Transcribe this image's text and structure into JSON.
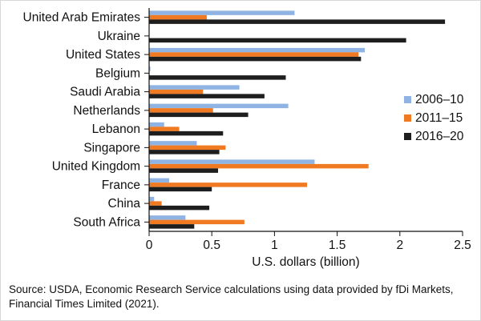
{
  "chart_data": {
    "type": "bar",
    "orientation": "horizontal",
    "title": "",
    "xlabel": "U.S. dollars (billion)",
    "ylabel": "",
    "xlim": [
      0,
      2.5
    ],
    "xticks": [
      0,
      0.5,
      1,
      1.5,
      2,
      2.5
    ],
    "xtick_labels": [
      "0",
      "0.5",
      "1",
      "1.5",
      "2",
      "2.5"
    ],
    "grid": false,
    "legend_position": "right",
    "categories": [
      "United Arab Emirates",
      "Ukraine",
      "United States",
      "Belgium",
      "Saudi Arabia",
      "Netherlands",
      "Lebanon",
      "Singapore",
      "United Kingdom",
      "France",
      "China",
      "South Africa"
    ],
    "series": [
      {
        "name": "2006–10",
        "color": "#8fb4e3",
        "values": [
          1.16,
          0.0,
          1.72,
          0.01,
          0.72,
          1.11,
          0.12,
          0.38,
          1.32,
          0.16,
          0.04,
          0.29
        ]
      },
      {
        "name": "2011–15",
        "color": "#f07a22",
        "values": [
          0.46,
          0.0,
          1.67,
          0.0,
          0.43,
          0.51,
          0.24,
          0.61,
          1.75,
          1.26,
          0.1,
          0.76
        ]
      },
      {
        "name": "2016–20",
        "color": "#1e1e1e",
        "values": [
          2.36,
          2.05,
          1.69,
          1.09,
          0.92,
          0.79,
          0.59,
          0.56,
          0.55,
          0.5,
          0.48,
          0.36
        ]
      }
    ]
  },
  "source_note": "Source: USDA, Economic Research Service calculations using data provided by fDi Markets, Financial Times Limited (2021)."
}
